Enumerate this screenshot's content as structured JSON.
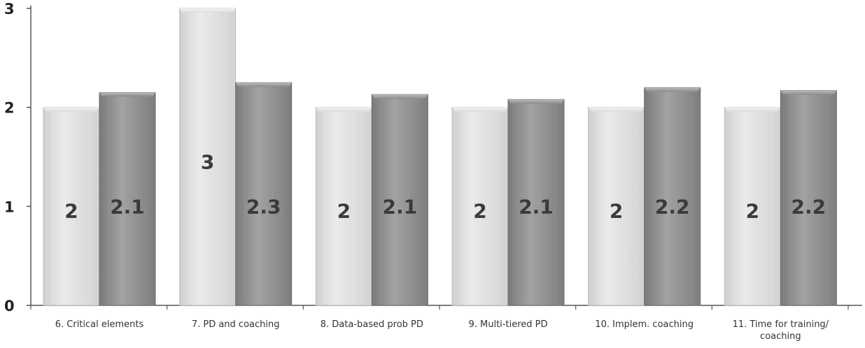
{
  "chart_data": {
    "type": "bar",
    "categories": [
      "6. Critical elements",
      "7. PD and coaching",
      "8. Data-based prob PD",
      "9.  Multi-tiered PD",
      "10. Implem. coaching",
      "11. Time for training/ coaching"
    ],
    "series": [
      {
        "values": [
          2,
          3,
          2,
          2,
          2,
          2
        ],
        "labels": [
          "2",
          "3",
          "2",
          "2",
          "2",
          "2"
        ],
        "color": "#d9d9d9"
      },
      {
        "values": [
          2.15,
          2.25,
          2.13,
          2.08,
          2.2,
          2.17
        ],
        "labels": [
          "2.1",
          "2.3",
          "2.1",
          "2.1",
          "2.2",
          "2.2"
        ],
        "color": "#8c8c8c"
      }
    ],
    "ylim": [
      0,
      3
    ],
    "yticks": [
      0,
      1,
      2,
      3
    ],
    "grid": false,
    "title": "",
    "xlabel": "",
    "ylabel": ""
  }
}
